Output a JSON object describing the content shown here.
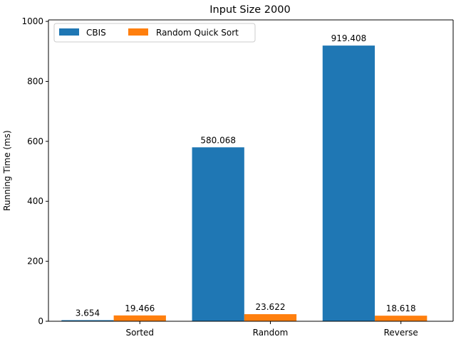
{
  "chart_data": {
    "type": "bar",
    "title": "Input Size 2000",
    "xlabel": "",
    "ylabel": "Running Time (ms)",
    "categories": [
      "Sorted",
      "Random",
      "Reverse"
    ],
    "series": [
      {
        "name": "CBIS",
        "values": [
          3.654,
          580.068,
          919.408
        ],
        "labels": [
          "3.654",
          "580.068",
          "919.408"
        ],
        "color": "#1f77b4"
      },
      {
        "name": "Random Quick Sort",
        "values": [
          19.466,
          23.622,
          18.618
        ],
        "labels": [
          "19.466",
          "23.622",
          "18.618"
        ],
        "color": "#ff7f0e"
      }
    ],
    "yticks": [
      0,
      200,
      400,
      600,
      800,
      1000
    ],
    "ylim": [
      0,
      1005
    ],
    "grid": false,
    "legend_position": "top-left",
    "legend_columns": 2
  }
}
